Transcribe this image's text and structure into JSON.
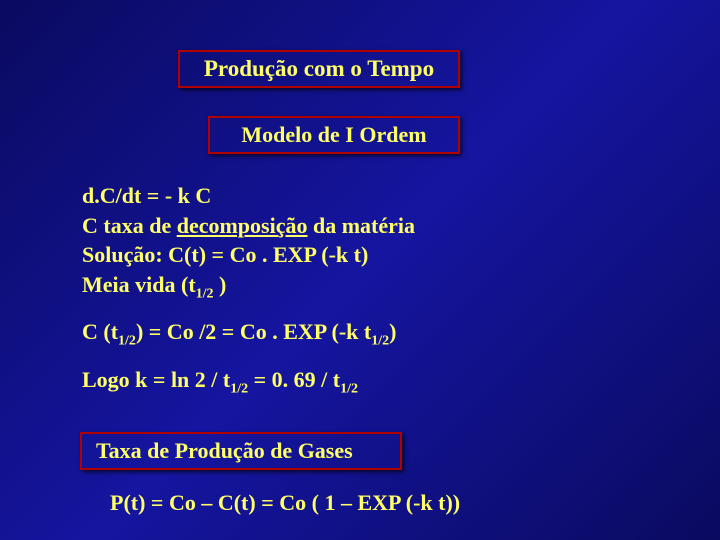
{
  "colors": {
    "background_start": "#0a0a60",
    "background_mid": "#1515a0",
    "background_end": "#0a0a60",
    "text": "#ffff66",
    "box_border": "#b00000"
  },
  "typography": {
    "font_family": "Times New Roman, serif",
    "base_size_pt": 22,
    "sub_size_pt": 14,
    "weight": "bold"
  },
  "title": "Produção com o Tempo",
  "model": "Modelo de  I Ordem",
  "lines": {
    "eq": "d.C/dt = - k C",
    "taxa_prefix": "C taxa de ",
    "taxa_under": "decomposição",
    "taxa_suffix": " da matéria",
    "sol": "Solução: C(t) = Co . EXP (-k t)",
    "meia_prefix": "Meia vida (t",
    "meia_sub": "1/2",
    "meia_suffix": " )",
    "ct_1": "C (t",
    "ct_2": ") = Co /2  = Co . EXP (-k t",
    "ct_3": ")",
    "logo_1": "Logo  k = ln 2 / t",
    "logo_2": "  = 0. 69 / t",
    "taxa_box": "Taxa de Produção de Gases",
    "pt": "P(t)  = Co – C(t) = Co ( 1 – EXP (-k t))"
  }
}
